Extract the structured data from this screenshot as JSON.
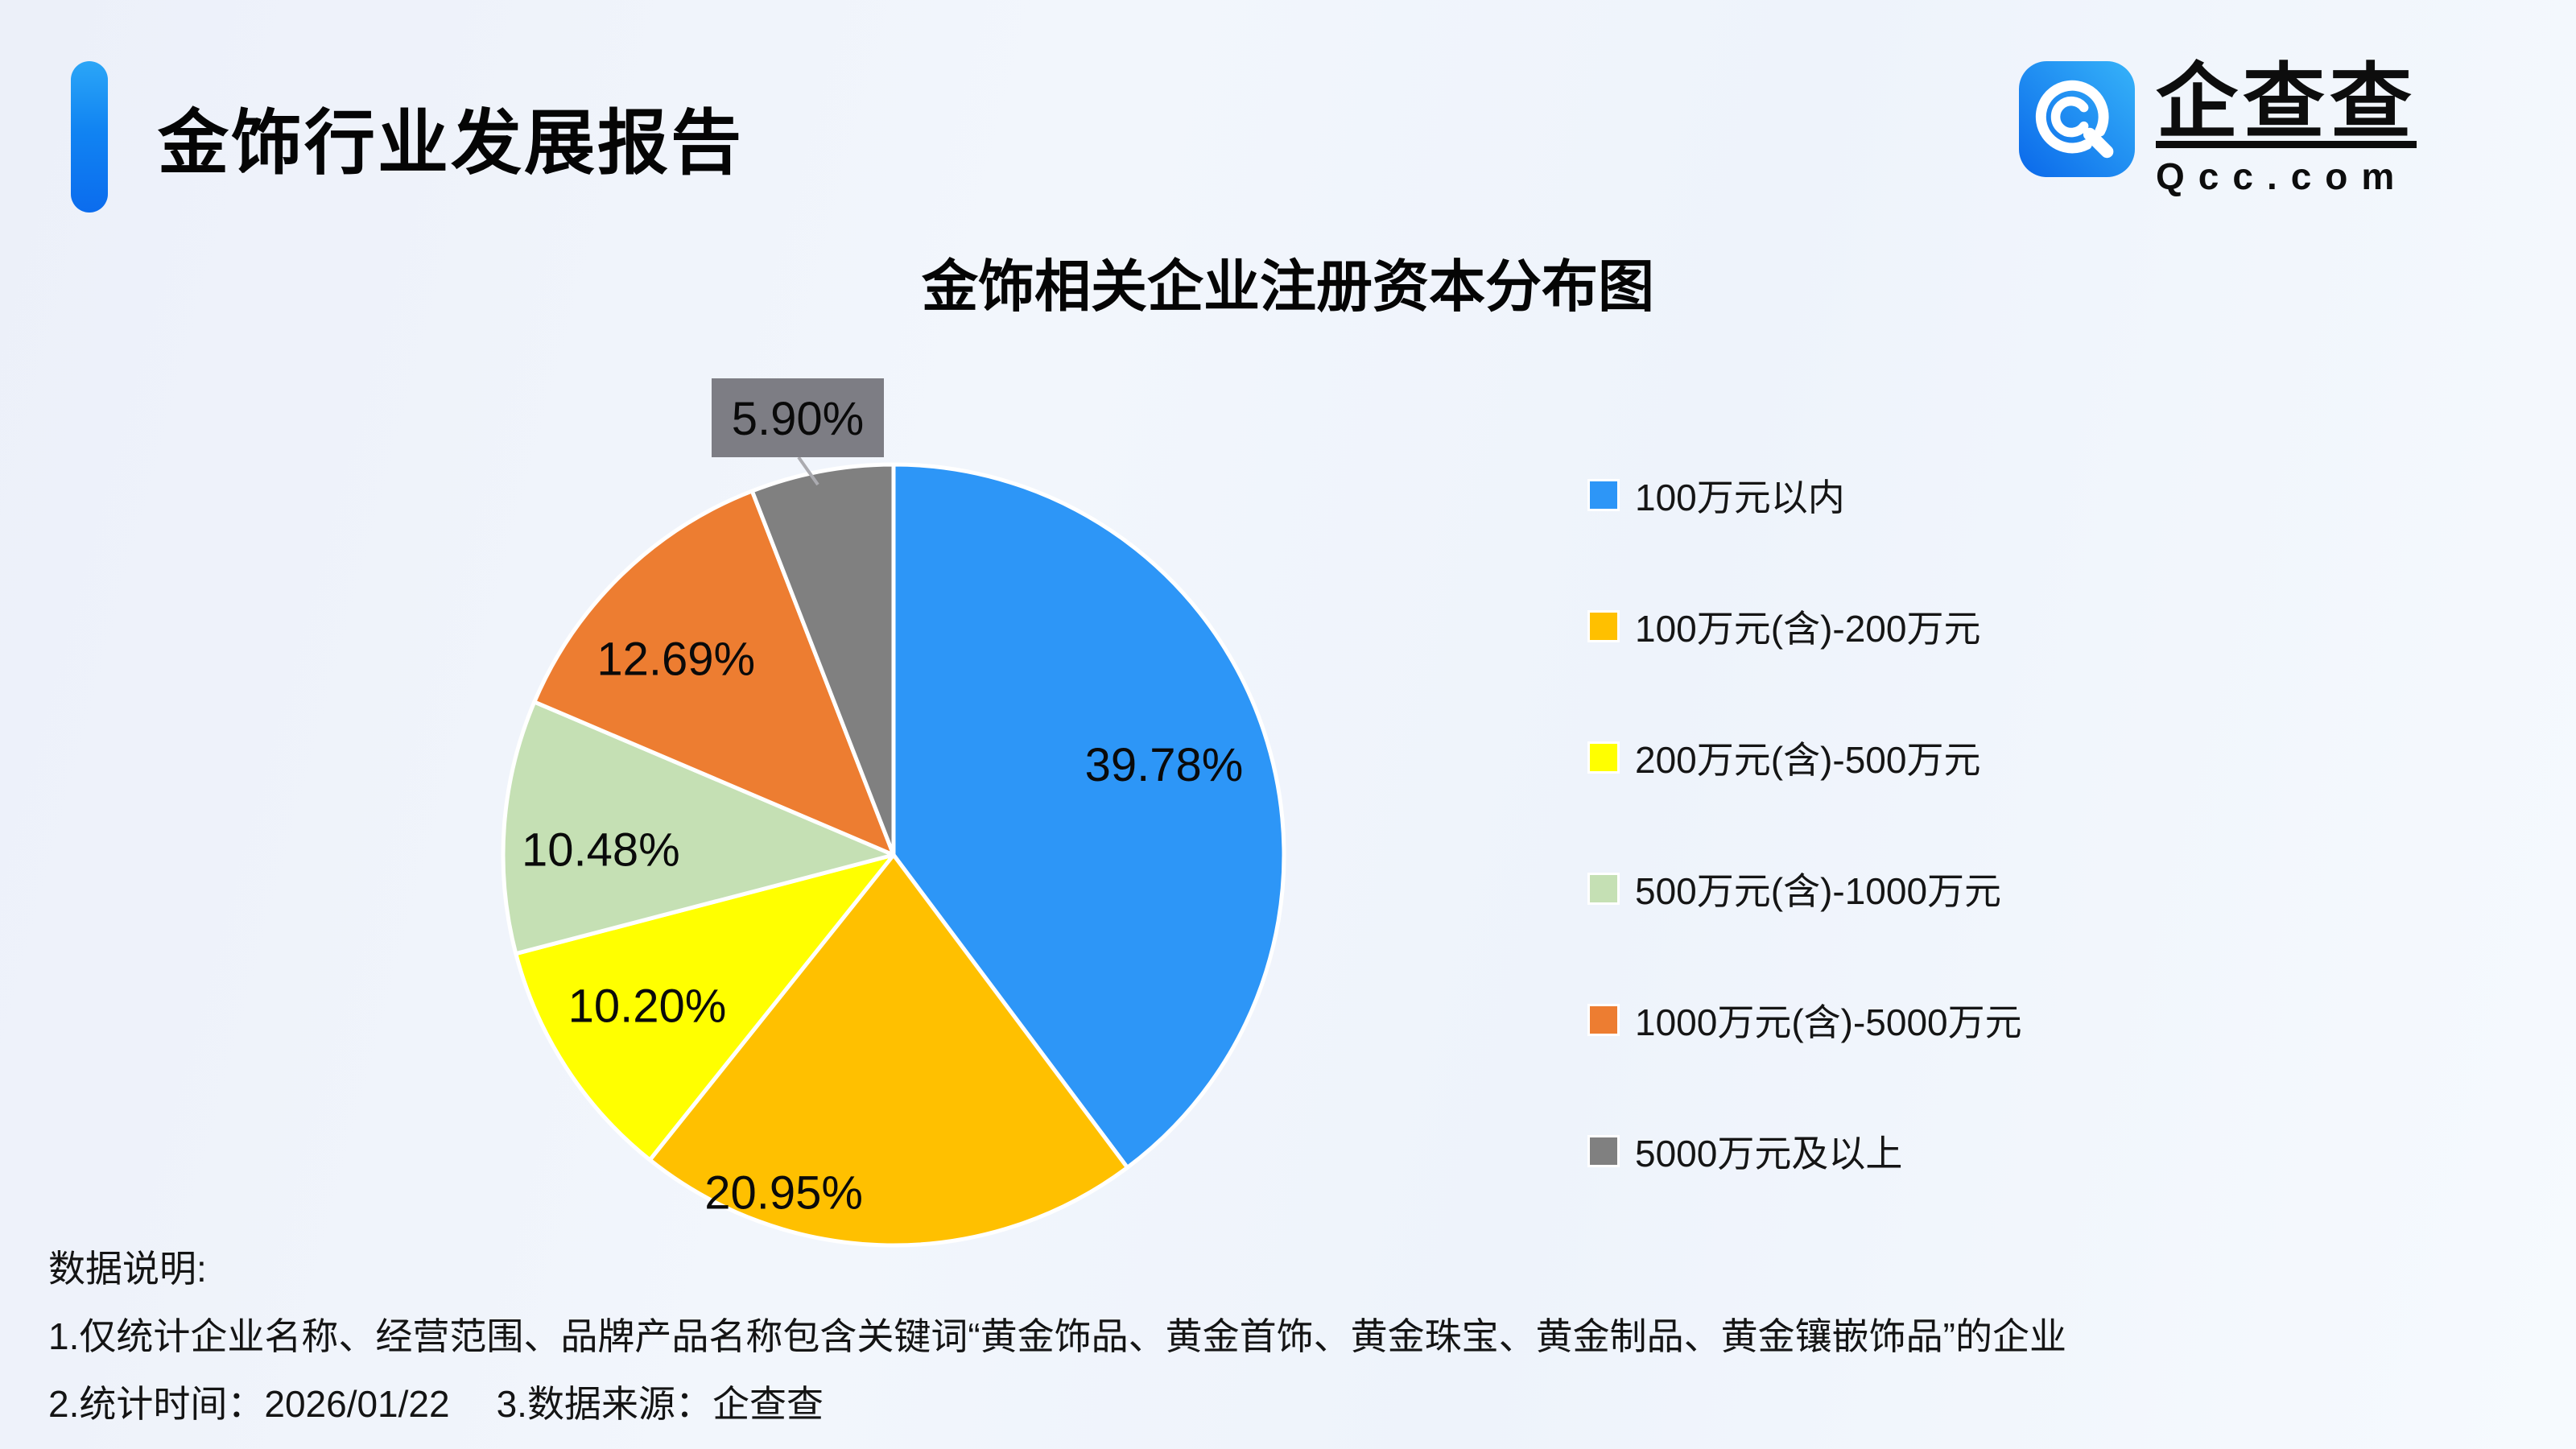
{
  "header": {
    "title": "金饰行业发展报告"
  },
  "logo": {
    "brand": "企查查",
    "domain": "Qcc.com"
  },
  "chart_data": {
    "type": "pie",
    "title": "金饰相关企业注册资本分布图",
    "unit": "%",
    "start_angle": "top",
    "direction": "clockwise",
    "legend_position": "right",
    "slices": [
      {
        "label": "100万元以内",
        "value": 39.78,
        "display": "39.78%",
        "color": "#2D96F7"
      },
      {
        "label": "100万元(含)-200万元",
        "value": 20.95,
        "display": "20.95%",
        "color": "#FFC000"
      },
      {
        "label": "200万元(含)-500万元",
        "value": 10.2,
        "display": "10.20%",
        "color": "#FFFF00"
      },
      {
        "label": "500万元(含)-1000万元",
        "value": 10.48,
        "display": "10.48%",
        "color": "#C5E0B4"
      },
      {
        "label": "1000万元(含)-5000万元",
        "value": 12.69,
        "display": "12.69%",
        "color": "#ED7D31"
      },
      {
        "label": "5000万元及以上",
        "value": 5.9,
        "display": "5.90%",
        "color": "#808080",
        "label_outside": true,
        "label_box_color": "#7D7D84",
        "leader_color": "#ABABB0"
      }
    ]
  },
  "footer": {
    "heading": "数据说明:",
    "note1": "1.仅统计企业名称、经营范围、品牌产品名称包含关键词“黄金饰品、黄金首饰、黄金珠宝、黄金制品、黄金镶嵌饰品”的企业",
    "note2_time": "2.统计时间：2026/01/22",
    "note2_source": "3.数据来源：企查查"
  }
}
